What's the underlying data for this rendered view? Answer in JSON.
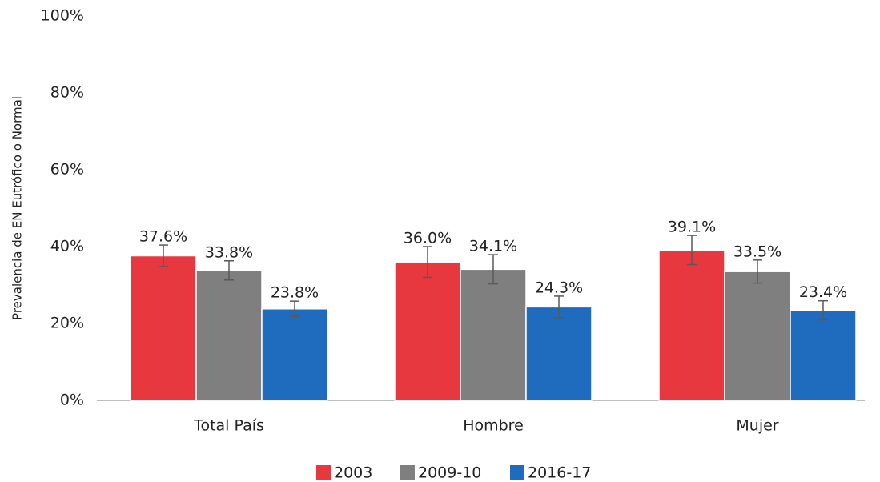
{
  "chart_data": {
    "type": "bar",
    "y_label": "Prevalencia de EN Eutrófico o Normal",
    "categories": [
      "Total País",
      "Hombre",
      "Mujer"
    ],
    "series": [
      {
        "name": "2003",
        "color": "#e8383f",
        "values": [
          37.6,
          36.0,
          39.1
        ],
        "value_labels": [
          "37.6%",
          "36.0%",
          "39.1%"
        ],
        "errors": [
          2.8,
          4.0,
          3.8
        ]
      },
      {
        "name": "2009-10",
        "color": "#7f7f7f",
        "values": [
          33.8,
          34.1,
          33.5
        ],
        "value_labels": [
          "33.8%",
          "34.1%",
          "33.5%"
        ],
        "errors": [
          2.5,
          3.8,
          3.0
        ]
      },
      {
        "name": "2016-17",
        "color": "#1f6cbf",
        "values": [
          23.8,
          24.3,
          23.4
        ],
        "value_labels": [
          "23.8%",
          "24.3%",
          "23.4%"
        ],
        "errors": [
          2.0,
          2.8,
          2.5
        ]
      }
    ],
    "ylim": [
      0,
      100
    ],
    "yticks": [
      {
        "value": 0,
        "label": "0%"
      },
      {
        "value": 20,
        "label": "20%"
      },
      {
        "value": 40,
        "label": "40%"
      },
      {
        "value": 60,
        "label": "60%"
      },
      {
        "value": 80,
        "label": "80%"
      },
      {
        "value": 100,
        "label": "100%"
      }
    ],
    "grid": false,
    "legend": "bottom"
  }
}
